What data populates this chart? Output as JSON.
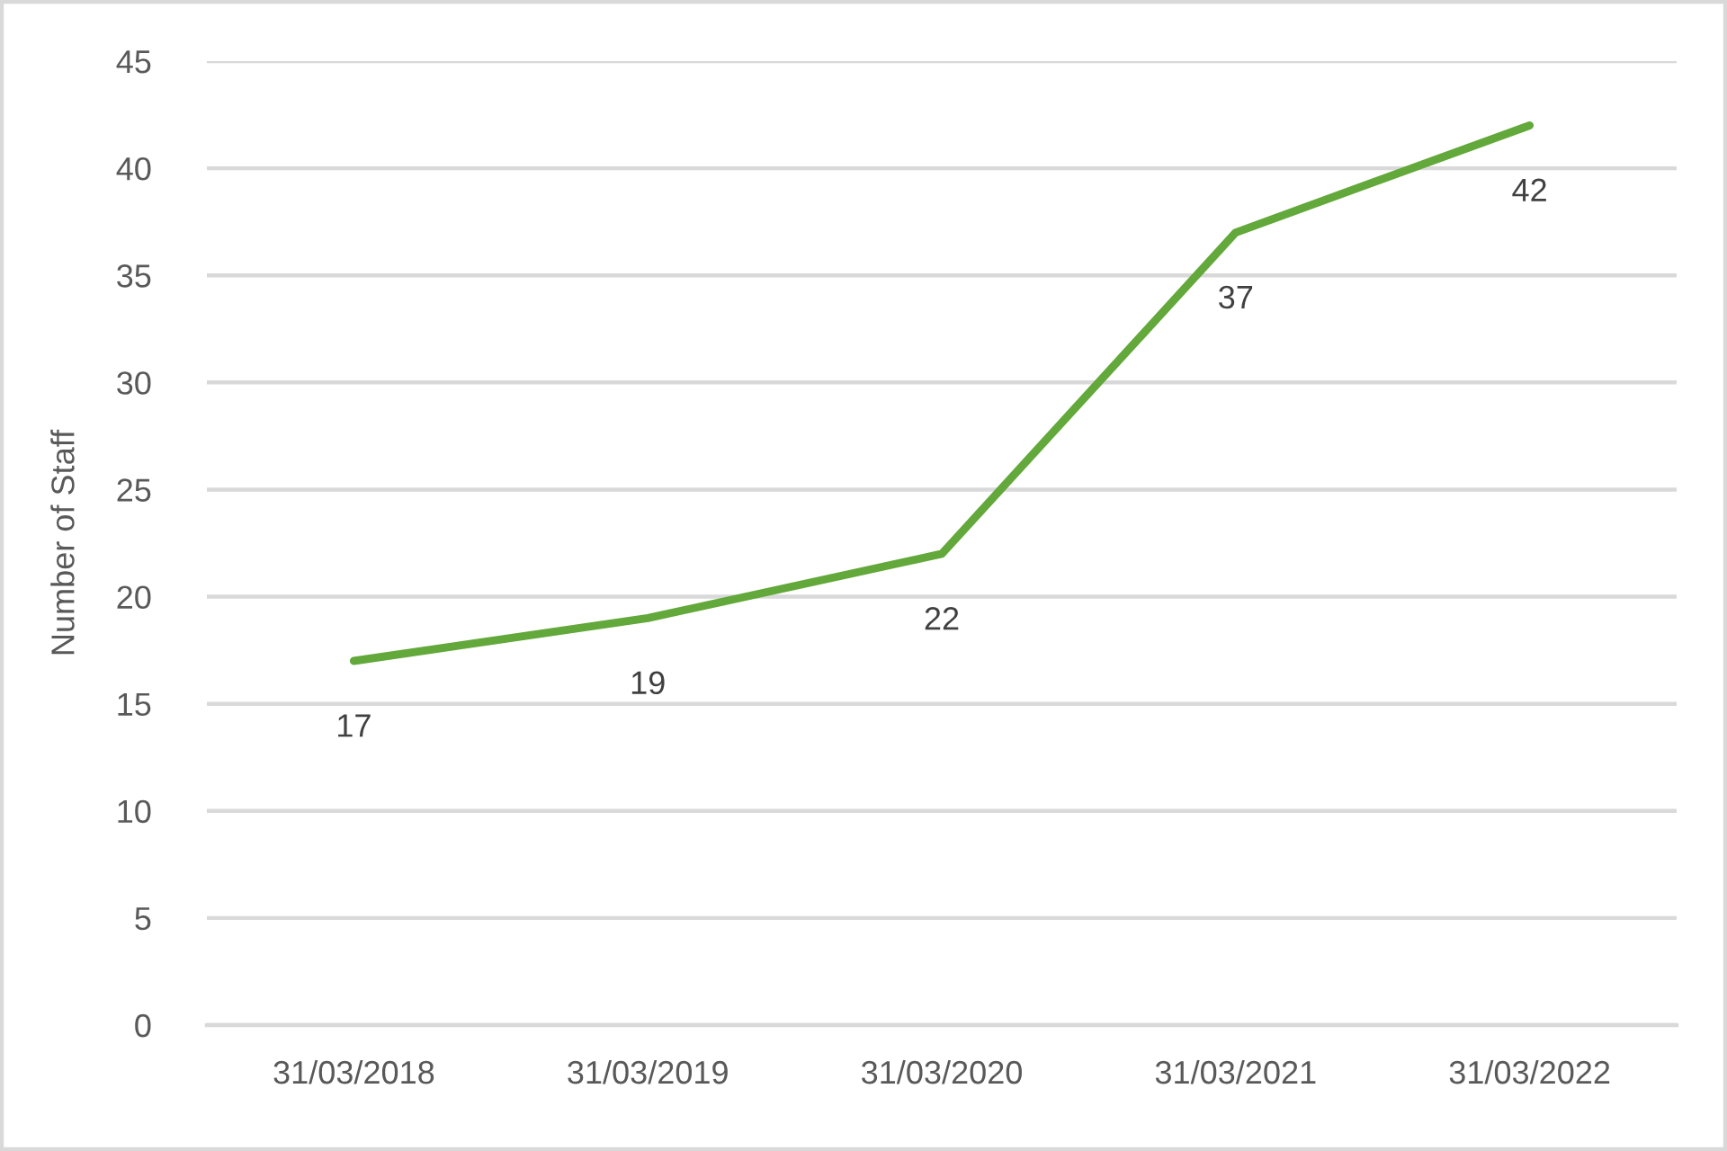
{
  "chart_data": {
    "type": "line",
    "ylabel": "Number of Staff",
    "categories": [
      "31/03/2018",
      "31/03/2019",
      "31/03/2020",
      "31/03/2021",
      "31/03/2022"
    ],
    "series": [
      {
        "color": "#62a83a",
        "values": [
          17,
          19,
          22,
          37,
          42
        ]
      }
    ],
    "ylim": [
      0,
      45
    ],
    "yticks": [
      0,
      5,
      10,
      15,
      20,
      25,
      30,
      35,
      40,
      45
    ],
    "grid": "y",
    "data_labels": true,
    "marker": "none",
    "line_style": "solid"
  }
}
